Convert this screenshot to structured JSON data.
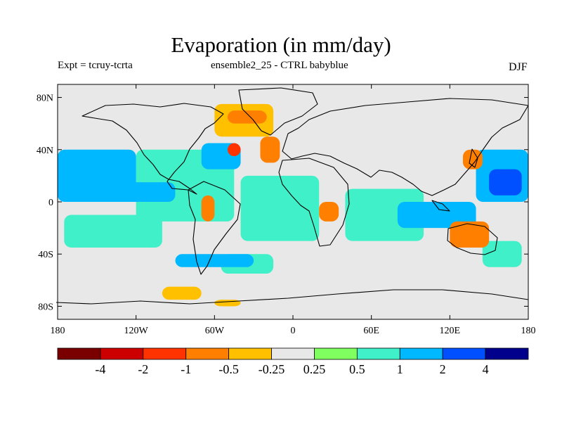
{
  "header": {
    "title": "Evaporation (in mm/day)",
    "left": "Expt = tcruy-tcrta",
    "center": "ensemble2_25 - CTRL babyblue",
    "right": "DJF"
  },
  "chart_data": {
    "type": "heatmap",
    "title": "Evaporation (in mm/day)",
    "xlim": [
      -180,
      180
    ],
    "ylim": [
      -90,
      90
    ],
    "x_ticks": [
      {
        "value": -180,
        "label": "180"
      },
      {
        "value": -120,
        "label": "120W"
      },
      {
        "value": -60,
        "label": "60W"
      },
      {
        "value": 0,
        "label": "0"
      },
      {
        "value": 60,
        "label": "60E"
      },
      {
        "value": 120,
        "label": "120E"
      },
      {
        "value": 180,
        "label": "180"
      }
    ],
    "y_ticks": [
      {
        "value": 80,
        "label": "80N"
      },
      {
        "value": 40,
        "label": "40N"
      },
      {
        "value": 0,
        "label": "0"
      },
      {
        "value": -40,
        "label": "40S"
      },
      {
        "value": -80,
        "label": "80S"
      }
    ],
    "colorbar": {
      "colors": [
        "#7a0000",
        "#cc0000",
        "#ff3300",
        "#ff8000",
        "#ffc000",
        "#e8e8e8",
        "#80ff60",
        "#40f0c8",
        "#00b8ff",
        "#0050ff",
        "#00008c"
      ],
      "labels": [
        "-4",
        "-2",
        "-1",
        "-0.5",
        "-0.25",
        "0.25",
        "0.5",
        "1",
        "2",
        "4"
      ]
    },
    "background_color": "#e8e8e8",
    "regions": [
      {
        "lon": [
          -120,
          -45
        ],
        "lat": [
          -15,
          40
        ],
        "value": 0.75
      },
      {
        "lon": [
          -180,
          -120
        ],
        "lat": [
          0,
          40
        ],
        "value": 1.5
      },
      {
        "lon": [
          -160,
          -90
        ],
        "lat": [
          0,
          15
        ],
        "value": 1.5
      },
      {
        "lon": [
          -175,
          -100
        ],
        "lat": [
          -35,
          -10
        ],
        "value": 0.75
      },
      {
        "lon": [
          -40,
          20
        ],
        "lat": [
          -30,
          20
        ],
        "value": 0.75
      },
      {
        "lon": [
          40,
          100
        ],
        "lat": [
          -30,
          10
        ],
        "value": 0.75
      },
      {
        "lon": [
          80,
          140
        ],
        "lat": [
          -20,
          0
        ],
        "value": 1.5
      },
      {
        "lon": [
          140,
          180
        ],
        "lat": [
          0,
          40
        ],
        "value": 1.5
      },
      {
        "lon": [
          150,
          175
        ],
        "lat": [
          5,
          25
        ],
        "value": 3
      },
      {
        "lon": [
          145,
          175
        ],
        "lat": [
          -50,
          -30
        ],
        "value": 0.75
      },
      {
        "lon": [
          -55,
          -15
        ],
        "lat": [
          -55,
          -40
        ],
        "value": 0.75
      },
      {
        "lon": [
          -90,
          -30
        ],
        "lat": [
          -50,
          -40
        ],
        "value": 1.5
      },
      {
        "lon": [
          -70,
          -40
        ],
        "lat": [
          25,
          45
        ],
        "value": 1.5
      },
      {
        "lon": [
          -60,
          -15
        ],
        "lat": [
          50,
          75
        ],
        "value": -0.35
      },
      {
        "lon": [
          -50,
          -20
        ],
        "lat": [
          60,
          70
        ],
        "value": -0.7
      },
      {
        "lon": [
          -50,
          -40
        ],
        "lat": [
          35,
          45
        ],
        "value": -1.5
      },
      {
        "lon": [
          -25,
          -10
        ],
        "lat": [
          30,
          50
        ],
        "value": -0.7
      },
      {
        "lon": [
          -70,
          -60
        ],
        "lat": [
          -15,
          5
        ],
        "value": -0.7
      },
      {
        "lon": [
          20,
          35
        ],
        "lat": [
          -15,
          0
        ],
        "value": -0.7
      },
      {
        "lon": [
          130,
          145
        ],
        "lat": [
          25,
          40
        ],
        "value": -0.7
      },
      {
        "lon": [
          120,
          150
        ],
        "lat": [
          -35,
          -15
        ],
        "value": -0.7
      },
      {
        "lon": [
          -100,
          -70
        ],
        "lat": [
          -75,
          -65
        ],
        "value": -0.35
      },
      {
        "lon": [
          -60,
          -40
        ],
        "lat": [
          -80,
          -75
        ],
        "value": -0.35
      }
    ]
  }
}
